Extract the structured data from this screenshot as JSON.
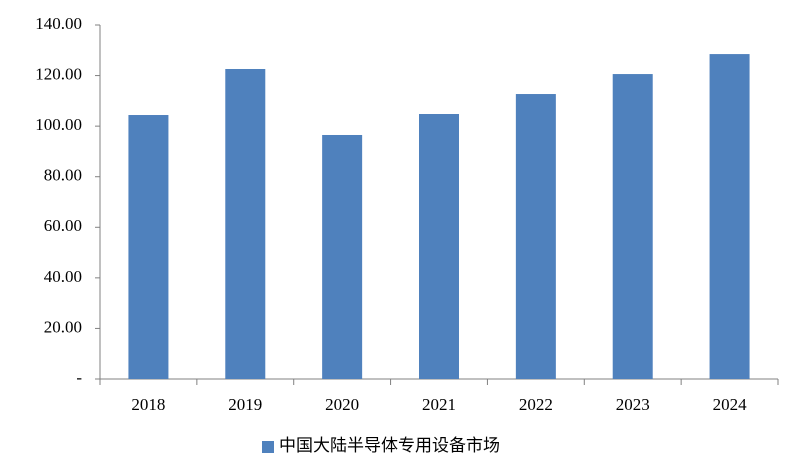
{
  "chart_data": {
    "type": "bar",
    "categories": [
      "2018",
      "2019",
      "2020",
      "2021",
      "2022",
      "2023",
      "2024"
    ],
    "series": [
      {
        "name": "中国大陆半导体专用设备市场",
        "color": "#4f81bd",
        "values": [
          104.4,
          122.6,
          96.5,
          104.8,
          112.7,
          120.6,
          128.5
        ]
      }
    ],
    "ylim": [
      0,
      140
    ],
    "yticks": [
      {
        "value": 0,
        "label": "-"
      },
      {
        "value": 20,
        "label": "20.00"
      },
      {
        "value": 40,
        "label": "40.00"
      },
      {
        "value": 60,
        "label": "60.00"
      },
      {
        "value": 80,
        "label": "80.00"
      },
      {
        "value": 100,
        "label": "100.00"
      },
      {
        "value": 120,
        "label": "120.00"
      },
      {
        "value": 140,
        "label": "140.00"
      }
    ],
    "grid": false,
    "legend": "bottom"
  }
}
